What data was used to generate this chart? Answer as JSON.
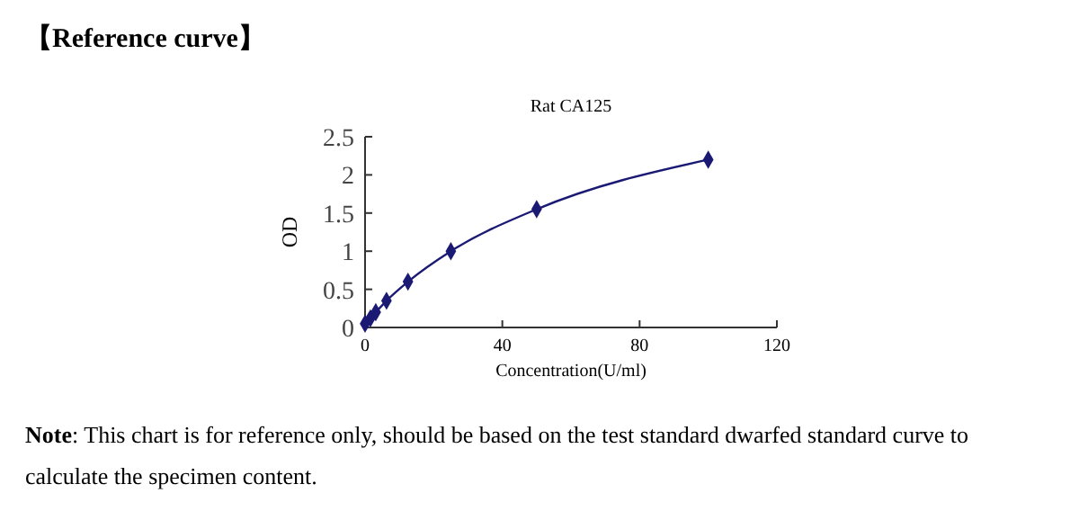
{
  "chart_data": {
    "type": "line",
    "title": "Rat CA125",
    "xlabel": "Concentration(U/ml)",
    "ylabel": "OD",
    "x": [
      0,
      1.56,
      3.12,
      6.25,
      12.5,
      25,
      50,
      100
    ],
    "series": [
      {
        "color": "#1a1a75",
        "values": [
          0.05,
          0.12,
          0.2,
          0.35,
          0.6,
          1.0,
          1.55,
          2.2
        ]
      }
    ],
    "xlim": [
      0,
      120
    ],
    "xticks": [
      0,
      40,
      80,
      120
    ],
    "ylim": [
      0,
      2.5
    ],
    "yticks": [
      0,
      0.5,
      1,
      1.5,
      2,
      2.5
    ],
    "marker": "diamond",
    "grid": false,
    "annotations": [
      "【Reference curve】",
      "Note: This chart is for reference only, should be based on the test standard dwarfed standard curve to calculate the specimen content."
    ]
  }
}
